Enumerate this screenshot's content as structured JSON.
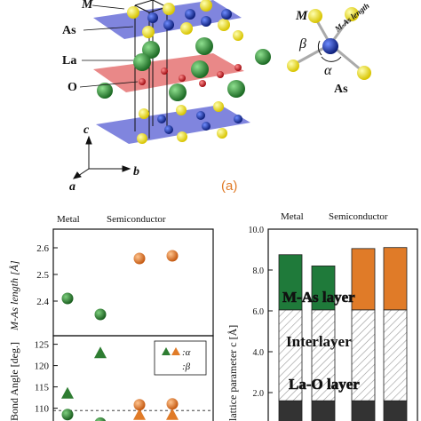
{
  "crystal": {
    "atom_labels": [
      "M",
      "As",
      "La",
      "O"
    ],
    "axis_labels": {
      "c": "c",
      "a": "a",
      "b": "b"
    },
    "inset": {
      "m": "M",
      "beta": "β",
      "alpha": "α",
      "length": "M-As length",
      "as": "As"
    },
    "panel_label": "(a)",
    "colors": {
      "M": "#1f3aa8",
      "As": "#f2e21a",
      "La": "#2f9a3a",
      "O": "#d4141a",
      "MAs_layer": "#6f74e0",
      "LaO_layer": "#e86a6a"
    }
  },
  "left_panel": {
    "group_labels": [
      "Metal",
      "Semiconductor"
    ],
    "top": {
      "ylabel": "M-As length [Å]",
      "yticks": [
        "2.6",
        "2.5",
        "2.4"
      ]
    },
    "bottom": {
      "ylabel": "Bond Angle [deg.]",
      "yticks": [
        "125",
        "120",
        "115",
        "110"
      ],
      "legend": {
        "alpha": ":α",
        "beta": ":β"
      }
    }
  },
  "right_panel": {
    "group_labels": [
      "Metal",
      "Semiconductor"
    ],
    "ylabel": "lattice parameter c [Å]",
    "yticks": [
      "10.0",
      "8.0",
      "6.0",
      "4.0",
      "2.0"
    ],
    "layer_labels": {
      "m_as": "M-As layer",
      "interlayer": "Interlayer",
      "la_o": "La-O layer"
    }
  },
  "chart_data": [
    {
      "type": "scatter",
      "ylabel": "M-As length [Å]",
      "ylim": [
        2.27,
        2.67
      ],
      "series": [
        {
          "name": "",
          "color": "#2e7d32",
          "x": [
            1,
            2
          ],
          "y": [
            2.41,
            2.35
          ]
        },
        {
          "name": "",
          "color": "#e07b28",
          "x": [
            3,
            4
          ],
          "y": [
            2.56,
            2.57
          ]
        }
      ]
    },
    {
      "type": "scatter",
      "ylabel": "Bond Angle [deg.]",
      "ylim": [
        107,
        127
      ],
      "reference_line": 109.47,
      "series": [
        {
          "name": "α",
          "marker": "triangle",
          "x": [
            1,
            2,
            3,
            4
          ],
          "y": [
            113.5,
            123,
            108.5,
            108.5
          ],
          "colors": [
            "#2e7d32",
            "#2e7d32",
            "#e07b28",
            "#e07b28"
          ]
        },
        {
          "name": "β",
          "marker": "circle",
          "x": [
            1,
            2,
            3,
            4
          ],
          "y": [
            108.5,
            106.5,
            110.8,
            111
          ],
          "colors": [
            "#2e7d32",
            "#2e7d32",
            "#e07b28",
            "#e07b28"
          ]
        }
      ]
    },
    {
      "type": "bar",
      "ylabel": "lattice parameter c [Å]",
      "ylim": [
        0,
        10
      ],
      "categories": [
        "1",
        "2",
        "3",
        "4"
      ],
      "series": [
        {
          "name": "La-O layer",
          "values": [
            1.6,
            1.6,
            1.6,
            1.6
          ]
        },
        {
          "name": "Interlayer",
          "values": [
            4.45,
            4.45,
            4.45,
            4.45
          ]
        },
        {
          "name": "M-As layer",
          "values": [
            2.7,
            2.15,
            3.0,
            3.05
          ]
        }
      ],
      "stack_colors": {
        "la_o": "#333333",
        "interlayer": "#ffffff",
        "m_as": [
          "#1f7a3a",
          "#1f7a3a",
          "#e07b28",
          "#e07b28"
        ]
      }
    }
  ]
}
